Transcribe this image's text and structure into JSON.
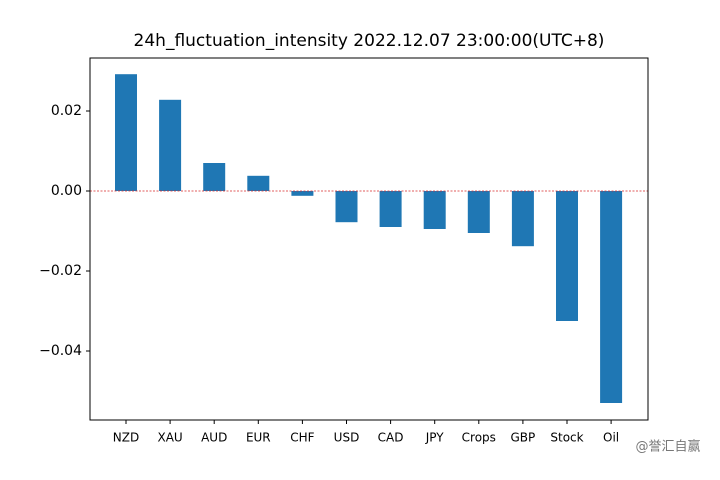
{
  "chart_data": {
    "type": "bar",
    "title": "24h_fluctuation_intensity 2022.12.07 23:00:00(UTC+8)",
    "categories": [
      "NZD",
      "XAU",
      "AUD",
      "EUR",
      "CHF",
      "USD",
      "CAD",
      "JPY",
      "Crops",
      "GBP",
      "Stock",
      "Oil"
    ],
    "values": [
      0.0292,
      0.0228,
      0.007,
      0.0038,
      -0.0012,
      -0.0078,
      -0.009,
      -0.0095,
      -0.0105,
      -0.0138,
      -0.0325,
      -0.053
    ],
    "color": "#1f77b4",
    "ylim": [
      -0.05725,
      0.03325
    ],
    "yticks": [
      {
        "value": -0.04,
        "label": "−0.04"
      },
      {
        "value": -0.02,
        "label": "−0.02"
      },
      {
        "value": 0,
        "label": "0.00"
      },
      0.02
    ],
    "reference_line": {
      "value": 0,
      "color": "#d62728"
    },
    "grid": false,
    "watermark": "@誉汇自赢"
  }
}
